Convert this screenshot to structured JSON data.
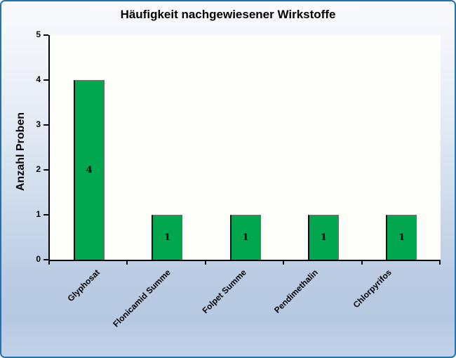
{
  "chart_data": {
    "type": "bar",
    "title": "Häufigkeit nachgewiesener Wirkstoffe",
    "ylabel": "Anzahl Proben",
    "xlabel": "",
    "categories": [
      "Glyphosat",
      "Flonicamid Summe",
      "Folpet Summe",
      "Pendimethalin",
      "Chlorpyrifos"
    ],
    "values": [
      4,
      1,
      1,
      1,
      1
    ],
    "bar_value_labels": [
      "4",
      "1",
      "1",
      "1",
      "1"
    ],
    "ylim": [
      0,
      5
    ],
    "yticks": [
      "0",
      "1",
      "2",
      "3",
      "4",
      "5"
    ],
    "grid": "off",
    "legend": "none"
  },
  "style": {
    "bar_fill": "#00A74F",
    "bar_edge": "#6D6D6D",
    "frame_border": "#2273B4",
    "axis_color": "#000000",
    "plot_background": "#FDFEFA",
    "background_top": "#F8FAFD",
    "background_bottom": "#C3D2E8",
    "text_color": "#000000"
  }
}
